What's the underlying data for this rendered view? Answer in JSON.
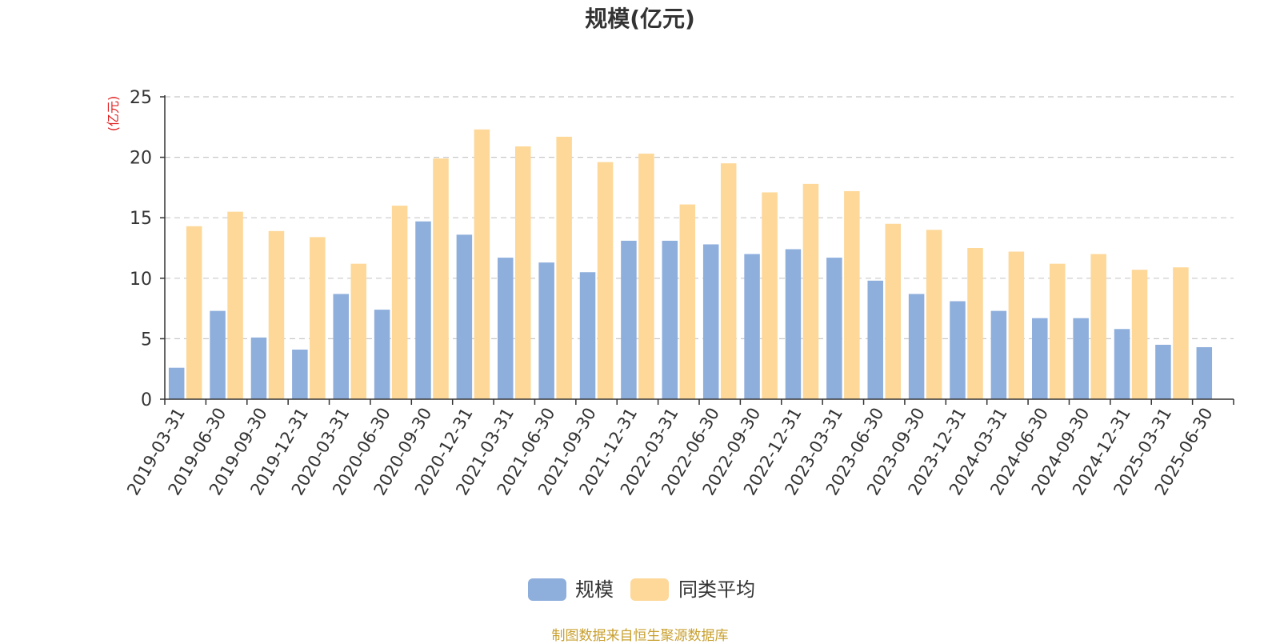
{
  "chart_data": {
    "type": "bar",
    "title": "规模(亿元)",
    "ylabel": "(亿元)",
    "xlabel": "",
    "ylim": [
      0,
      25
    ],
    "yticks": [
      0,
      5,
      10,
      15,
      20,
      25
    ],
    "grid": true,
    "legend_position": "bottom-center",
    "categories": [
      "2019-03-31",
      "2019-06-30",
      "2019-09-30",
      "2019-12-31",
      "2020-03-31",
      "2020-06-30",
      "2020-09-30",
      "2020-12-31",
      "2021-03-31",
      "2021-06-30",
      "2021-09-30",
      "2021-12-31",
      "2022-03-31",
      "2022-06-30",
      "2022-09-30",
      "2022-12-31",
      "2023-03-31",
      "2023-06-30",
      "2023-09-30",
      "2023-12-31",
      "2024-03-31",
      "2024-06-30",
      "2024-09-30",
      "2024-12-31",
      "2025-03-31",
      "2025-06-30"
    ],
    "series": [
      {
        "name": "规模",
        "color": "#8eaedc",
        "values": [
          2.6,
          7.3,
          5.1,
          4.1,
          8.7,
          7.4,
          14.7,
          13.6,
          11.7,
          11.3,
          10.5,
          13.1,
          13.1,
          12.8,
          12.0,
          12.4,
          11.7,
          9.8,
          8.7,
          8.1,
          7.3,
          6.7,
          6.7,
          5.8,
          4.5,
          4.3
        ]
      },
      {
        "name": "同类平均",
        "color": "#fdd898",
        "values": [
          14.3,
          15.5,
          13.9,
          13.4,
          11.2,
          16.0,
          19.9,
          22.3,
          20.9,
          21.7,
          19.6,
          20.3,
          16.1,
          19.5,
          17.1,
          17.8,
          17.2,
          14.5,
          14.0,
          12.5,
          12.2,
          11.2,
          12.0,
          10.7,
          10.9,
          null
        ]
      }
    ]
  },
  "footer": {
    "source_text": "制图数据来自恒生聚源数据库",
    "source_color": "#c8a030"
  },
  "colors": {
    "axis": "#333333",
    "grid": "#c8c8c8",
    "ylabel": "#e02020",
    "title": "#333333",
    "text": "#333333"
  }
}
